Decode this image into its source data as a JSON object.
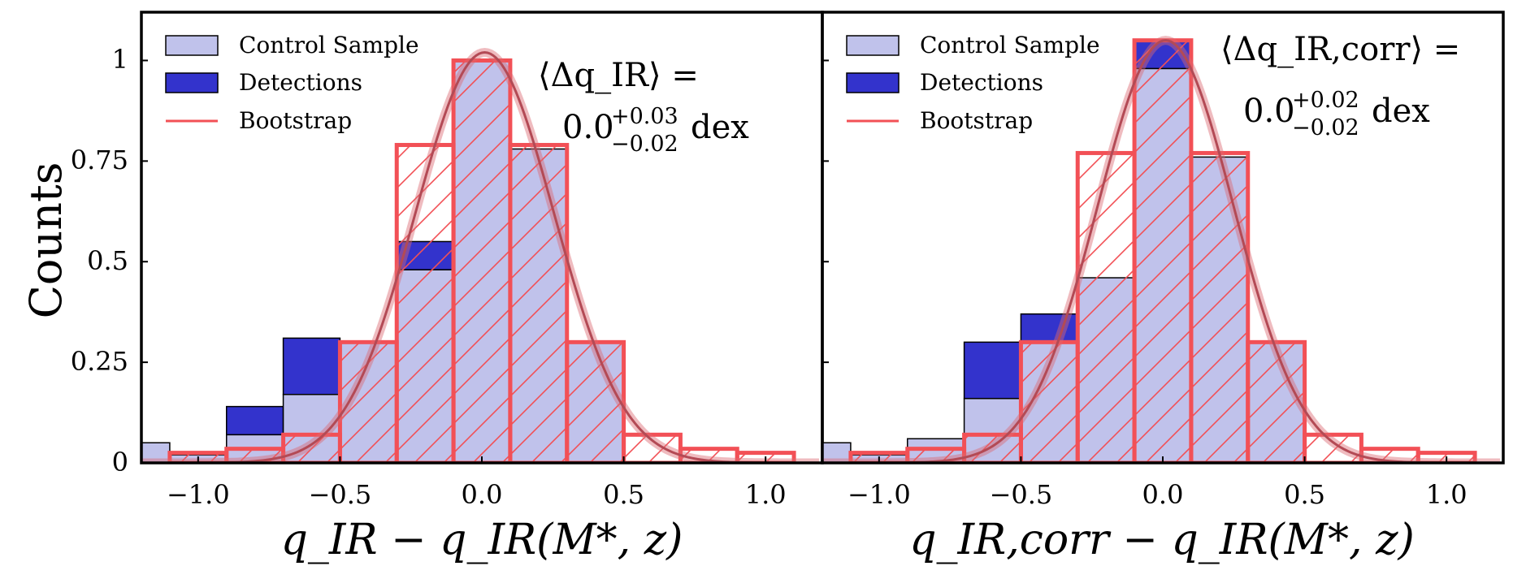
{
  "figure": {
    "ylabel": "Counts",
    "colors": {
      "control_fill": "#c0c2eb",
      "detections_fill": "#3333cc",
      "bootstrap": "#f25056",
      "curve": "#dc6870",
      "axis": "#000000"
    }
  },
  "legend": {
    "control": "Control Sample",
    "detections": "Detections",
    "bootstrap": "Bootstrap"
  },
  "chart_data": [
    {
      "type": "bar",
      "panel": "left",
      "xlabel": "q_IR − q_IR(M*, z)",
      "ylabel": "Counts",
      "xlim": [
        -1.2,
        1.2
      ],
      "ylim": [
        0,
        1.12
      ],
      "xticks": [
        "−1.0",
        "−0.5",
        "0.0",
        "0.5",
        "1.0"
      ],
      "xtick_values": [
        -1.0,
        -0.5,
        0.0,
        0.5,
        1.0
      ],
      "yticks": [
        "0",
        "0.25",
        "0.5",
        "0.75",
        "1"
      ],
      "ytick_values": [
        0,
        0.25,
        0.5,
        0.75,
        1.0
      ],
      "bin_edges": [
        -1.3,
        -1.1,
        -0.9,
        -0.7,
        -0.5,
        -0.3,
        -0.1,
        0.1,
        0.3,
        0.5,
        0.7,
        0.9,
        1.1
      ],
      "series": [
        {
          "name": "Control Sample",
          "values": [
            0.05,
            0.02,
            0.07,
            0.17,
            0.3,
            0.48,
            1.0,
            0.78,
            0.3,
            0.0,
            0.0,
            0.0
          ]
        },
        {
          "name": "Detections",
          "values": [
            0.0,
            0.0,
            0.07,
            0.14,
            0.0,
            0.07,
            0.0,
            0.0,
            0.0,
            0.0,
            0.0,
            0.0
          ]
        },
        {
          "name": "Bootstrap",
          "bin_edges": [
            -1.1,
            -0.9,
            -0.7,
            -0.5,
            -0.3,
            -0.1,
            0.1,
            0.3,
            0.5,
            0.7,
            0.9,
            1.1
          ],
          "values": [
            0.025,
            0.035,
            0.07,
            0.3,
            0.79,
            1.0,
            0.79,
            0.3,
            0.07,
            0.035,
            0.025
          ]
        }
      ],
      "gaussian": {
        "mean": 0.01,
        "sigma": 0.245,
        "amplitude": 1.02
      },
      "annotation": {
        "line1": "⟨Δq_IR⟩ =",
        "value": "0.0",
        "sup": "+0.03",
        "sub": "−0.02",
        "unit": "dex"
      }
    },
    {
      "type": "bar",
      "panel": "right",
      "xlabel": "q_IR,corr − q_IR(M*, z)",
      "xlim": [
        -1.2,
        1.2
      ],
      "ylim": [
        0,
        1.12
      ],
      "xticks": [
        "−1.0",
        "−0.5",
        "0.0",
        "0.5",
        "1.0"
      ],
      "xtick_values": [
        -1.0,
        -0.5,
        0.0,
        0.5,
        1.0
      ],
      "bin_edges": [
        -1.3,
        -1.1,
        -0.9,
        -0.7,
        -0.5,
        -0.3,
        -0.1,
        0.1,
        0.3,
        0.5,
        0.7,
        0.9,
        1.1
      ],
      "series": [
        {
          "name": "Control Sample",
          "values": [
            0.05,
            0.02,
            0.06,
            0.16,
            0.3,
            0.46,
            0.98,
            0.76,
            0.3,
            0.0,
            0.0,
            0.0
          ]
        },
        {
          "name": "Detections",
          "values": [
            0.0,
            0.0,
            0.0,
            0.14,
            0.07,
            0.0,
            0.07,
            0.0,
            0.0,
            0.0,
            0.0,
            0.0
          ]
        },
        {
          "name": "Bootstrap",
          "bin_edges": [
            -1.1,
            -0.9,
            -0.7,
            -0.5,
            -0.3,
            -0.1,
            0.1,
            0.3,
            0.5,
            0.7,
            0.9,
            1.1
          ],
          "values": [
            0.025,
            0.035,
            0.07,
            0.3,
            0.77,
            1.05,
            0.77,
            0.3,
            0.07,
            0.035,
            0.025
          ]
        }
      ],
      "gaussian": {
        "mean": 0.01,
        "sigma": 0.24,
        "amplitude": 1.05
      },
      "annotation": {
        "line1": "⟨Δq_IR,corr⟩ =",
        "value": "0.0",
        "sup": "+0.02",
        "sub": "−0.02",
        "unit": "dex"
      }
    }
  ]
}
